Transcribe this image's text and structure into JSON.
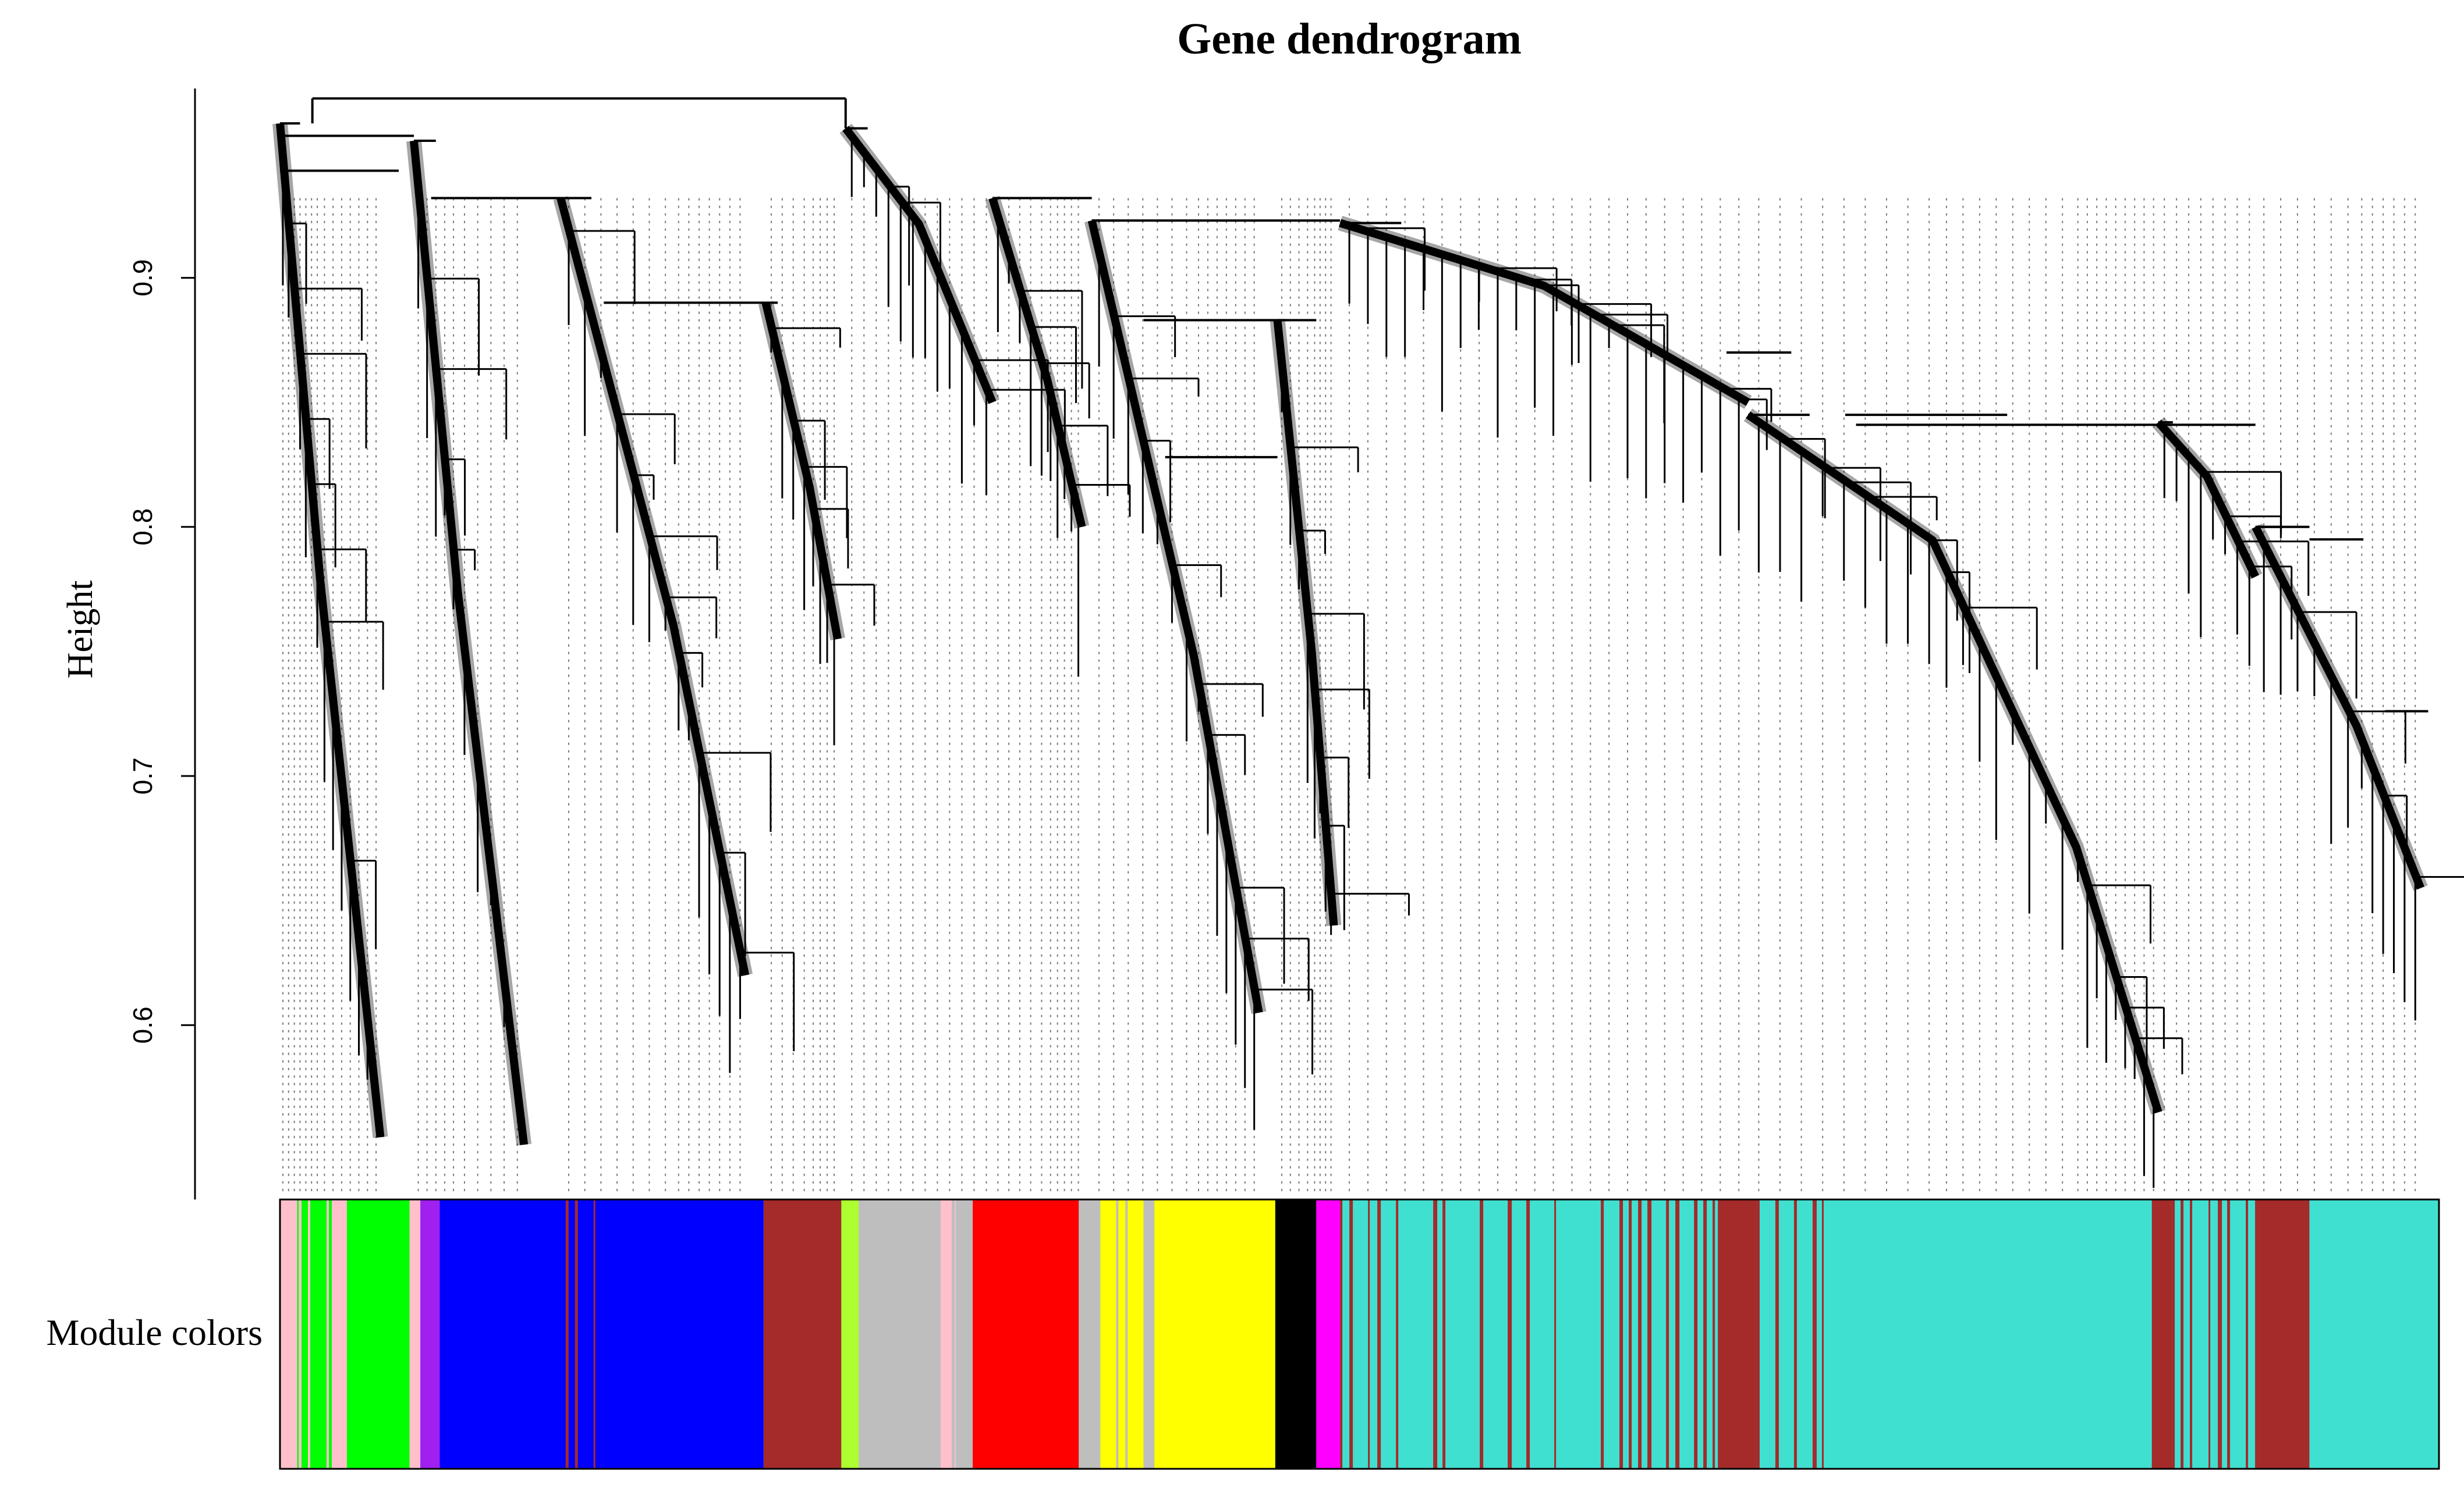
{
  "chart_data": {
    "type": "dendrogram",
    "title": "Gene dendrogram",
    "ylabel": "Height",
    "xlabel": "",
    "ylim": [
      0.53,
      0.98
    ],
    "yticks": [
      {
        "value": 0.6,
        "label": "0.6"
      },
      {
        "value": 0.7,
        "label": "0.7"
      },
      {
        "value": 0.8,
        "label": "0.8"
      },
      {
        "value": 0.9,
        "label": "0.9"
      }
    ],
    "root_height": 0.972,
    "module_bar_label": "Module colors",
    "module_colors": {
      "pink": "#ffc0cb",
      "green": "#00ff00",
      "purple": "#a020f0",
      "blue": "#0000ff",
      "brown": "#a52a2a",
      "greenyellow": "#adff2f",
      "grey": "#bebebe",
      "red": "#ff0000",
      "yellow": "#ffff00",
      "black": "#000000",
      "magenta": "#ff00ff",
      "turquoise": "#40e0d0"
    },
    "module_segments": [
      {
        "module": "pink",
        "start": 0.0,
        "end": 0.008
      },
      {
        "module": "green",
        "start": 0.008,
        "end": 0.024
      },
      {
        "module": "pink",
        "start": 0.024,
        "end": 0.031
      },
      {
        "module": "green",
        "start": 0.031,
        "end": 0.06
      },
      {
        "module": "pink",
        "start": 0.06,
        "end": 0.065
      },
      {
        "module": "purple",
        "start": 0.065,
        "end": 0.074
      },
      {
        "module": "blue",
        "start": 0.074,
        "end": 0.224
      },
      {
        "module": "brown",
        "start": 0.224,
        "end": 0.26
      },
      {
        "module": "greenyellow",
        "start": 0.26,
        "end": 0.268
      },
      {
        "module": "grey",
        "start": 0.268,
        "end": 0.306
      },
      {
        "module": "pink",
        "start": 0.306,
        "end": 0.313
      },
      {
        "module": "grey",
        "start": 0.313,
        "end": 0.32
      },
      {
        "module": "red",
        "start": 0.32,
        "end": 0.37
      },
      {
        "module": "grey",
        "start": 0.37,
        "end": 0.379
      },
      {
        "module": "yellow",
        "start": 0.379,
        "end": 0.4
      },
      {
        "module": "grey",
        "start": 0.4,
        "end": 0.405
      },
      {
        "module": "yellow",
        "start": 0.405,
        "end": 0.461
      },
      {
        "module": "black",
        "start": 0.461,
        "end": 0.48
      },
      {
        "module": "magenta",
        "start": 0.48,
        "end": 0.491
      },
      {
        "module": "turquoise",
        "start": 0.491,
        "end": 0.666
      },
      {
        "module": "brown",
        "start": 0.666,
        "end": 0.684
      },
      {
        "module": "turquoise",
        "start": 0.684,
        "end": 0.867
      },
      {
        "module": "brown",
        "start": 0.867,
        "end": 0.876
      },
      {
        "module": "turquoise",
        "start": 0.876,
        "end": 0.915
      },
      {
        "module": "brown",
        "start": 0.915,
        "end": 0.94
      },
      {
        "module": "turquoise",
        "start": 0.94,
        "end": 1.0
      }
    ],
    "module_stripes": [
      {
        "module": "pink",
        "start": 0.0,
        "end": 0.024
      },
      {
        "module": "brown",
        "start": 0.128,
        "end": 0.152
      },
      {
        "module": "grey",
        "start": 0.268,
        "end": 0.32
      },
      {
        "module": "grey",
        "start": 0.37,
        "end": 0.405
      },
      {
        "module": "brown",
        "start": 0.491,
        "end": 0.666
      },
      {
        "module": "brown",
        "start": 0.684,
        "end": 0.728
      },
      {
        "module": "brown",
        "start": 0.876,
        "end": 0.915
      }
    ]
  }
}
